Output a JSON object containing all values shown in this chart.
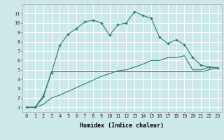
{
  "xlabel": "Humidex (Indice chaleur)",
  "background_color": "#cce8e8",
  "grid_color": "#ffffff",
  "line_color": "#2e7d72",
  "xlim": [
    -0.5,
    23.5
  ],
  "ylim": [
    0.5,
    12
  ],
  "x_ticks": [
    0,
    1,
    2,
    3,
    4,
    5,
    6,
    7,
    8,
    9,
    10,
    11,
    12,
    13,
    14,
    15,
    16,
    17,
    18,
    19,
    20,
    21,
    22,
    23
  ],
  "y_ticks": [
    1,
    2,
    3,
    4,
    5,
    6,
    7,
    8,
    9,
    10,
    11
  ],
  "series1_x": [
    0,
    1,
    2,
    3,
    4,
    5,
    6,
    7,
    8,
    9,
    10,
    11,
    12,
    13,
    14,
    15,
    16,
    17,
    18,
    19,
    20,
    21,
    22,
    23
  ],
  "series1_y": [
    1.0,
    1.0,
    2.2,
    4.7,
    7.6,
    8.8,
    9.4,
    10.1,
    10.3,
    10.0,
    8.7,
    9.8,
    10.0,
    11.2,
    10.8,
    10.5,
    8.5,
    7.8,
    8.2,
    7.7,
    6.3,
    5.5,
    5.3,
    5.2
  ],
  "series2_x": [
    0,
    1,
    2,
    3,
    4,
    5,
    6,
    7,
    8,
    9,
    10,
    11,
    12,
    13,
    14,
    15,
    16,
    17,
    18,
    19,
    20,
    21,
    22,
    23
  ],
  "series2_y": [
    1.0,
    1.0,
    2.0,
    4.8,
    4.8,
    4.8,
    4.8,
    4.8,
    4.8,
    4.8,
    4.8,
    4.8,
    4.8,
    4.8,
    4.8,
    4.8,
    4.8,
    4.8,
    4.8,
    4.8,
    4.8,
    4.8,
    5.0,
    5.2
  ],
  "series3_x": [
    0,
    1,
    2,
    3,
    4,
    5,
    6,
    7,
    8,
    9,
    10,
    11,
    12,
    13,
    14,
    15,
    16,
    17,
    18,
    19,
    20,
    21,
    22,
    23
  ],
  "series3_y": [
    1.0,
    1.0,
    1.3,
    2.0,
    2.3,
    2.7,
    3.1,
    3.5,
    3.9,
    4.3,
    4.6,
    4.9,
    5.0,
    5.3,
    5.6,
    6.0,
    6.0,
    6.3,
    6.3,
    6.5,
    5.0,
    5.0,
    5.3,
    5.2
  ],
  "tick_fontsize": 5.0,
  "xlabel_fontsize": 6.0
}
